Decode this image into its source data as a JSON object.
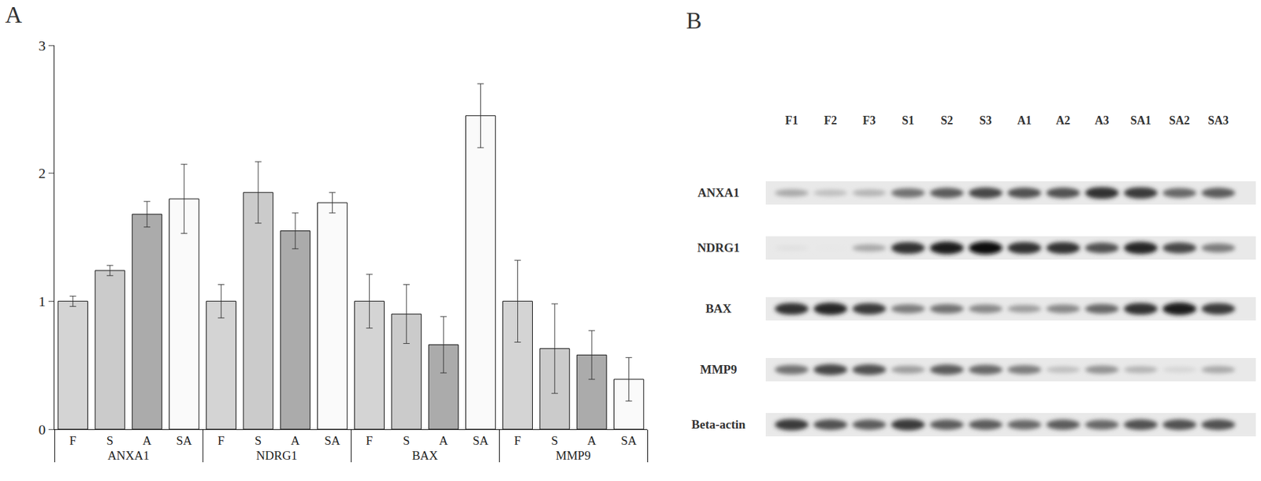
{
  "chart_data": {
    "type": "bar",
    "groups": [
      "ANXA1",
      "NDRG1",
      "BAX",
      "MMP9"
    ],
    "series": [
      {
        "name": "F",
        "color": "#d4d4d4",
        "values": [
          1.0,
          1.0,
          1.0,
          1.0
        ],
        "error": [
          0.04,
          0.13,
          0.21,
          0.32
        ]
      },
      {
        "name": "S",
        "color": "#cbcbcb",
        "values": [
          1.24,
          1.85,
          0.9,
          0.63
        ],
        "error": [
          0.04,
          0.24,
          0.23,
          0.35
        ]
      },
      {
        "name": "A",
        "color": "#ababab",
        "values": [
          1.68,
          1.55,
          0.66,
          0.58
        ],
        "error": [
          0.1,
          0.14,
          0.22,
          0.19
        ]
      },
      {
        "name": "SA",
        "color": "#fafafa",
        "values": [
          1.8,
          1.77,
          2.45,
          0.39
        ],
        "error": [
          0.27,
          0.08,
          0.25,
          0.17
        ]
      }
    ],
    "ylim": [
      0,
      3
    ],
    "yticks": [
      0,
      1,
      2,
      3
    ],
    "grid": false
  },
  "panel_labels": {
    "chart": "A",
    "blot": "B"
  },
  "blot": {
    "lanes": [
      "F1",
      "F2",
      "F3",
      "S1",
      "S2",
      "S3",
      "A1",
      "A2",
      "A3",
      "SA1",
      "SA2",
      "SA3"
    ],
    "rows": [
      {
        "label": "ANXA1",
        "intensity": [
          0.3,
          0.2,
          0.25,
          0.55,
          0.65,
          0.75,
          0.7,
          0.7,
          0.85,
          0.8,
          0.6,
          0.65
        ]
      },
      {
        "label": "NDRG1",
        "intensity": [
          0.05,
          0.02,
          0.3,
          0.85,
          0.95,
          1.0,
          0.85,
          0.85,
          0.7,
          0.9,
          0.75,
          0.5
        ]
      },
      {
        "label": "BAX",
        "intensity": [
          0.85,
          0.9,
          0.8,
          0.5,
          0.55,
          0.45,
          0.35,
          0.45,
          0.6,
          0.85,
          0.95,
          0.8
        ]
      },
      {
        "label": "MMP9",
        "intensity": [
          0.55,
          0.75,
          0.7,
          0.35,
          0.65,
          0.6,
          0.5,
          0.2,
          0.4,
          0.25,
          0.1,
          0.3
        ]
      },
      {
        "label": "Beta-actin",
        "intensity": [
          0.8,
          0.7,
          0.65,
          0.8,
          0.65,
          0.65,
          0.6,
          0.65,
          0.6,
          0.7,
          0.7,
          0.7
        ]
      }
    ]
  }
}
